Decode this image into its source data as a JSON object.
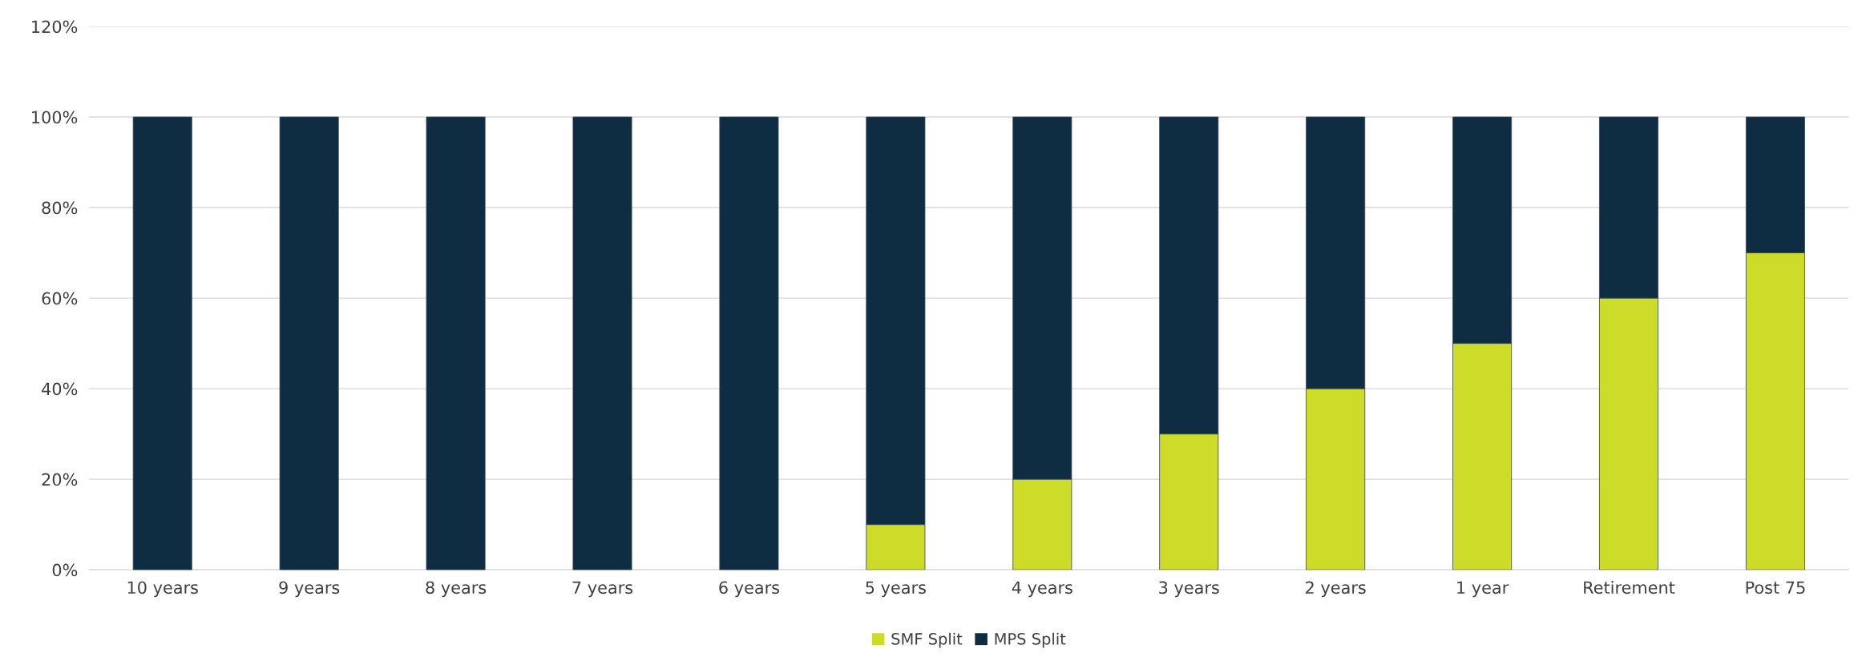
{
  "chart_data": {
    "type": "bar",
    "stacked": true,
    "categories": [
      "10 years",
      "9 years",
      "8 years",
      "7 years",
      "6 years",
      "5 years",
      "4 years",
      "3 years",
      "2 years",
      "1 year",
      "Retirement",
      "Post 75"
    ],
    "series": [
      {
        "name": "SMF Split",
        "color": "#cddc29",
        "values": [
          0,
          0,
          0,
          0,
          0,
          10,
          20,
          30,
          40,
          50,
          60,
          70
        ]
      },
      {
        "name": "MPS Split",
        "color": "#0e2c42",
        "values": [
          100,
          100,
          100,
          100,
          100,
          90,
          80,
          70,
          60,
          50,
          40,
          30
        ]
      }
    ],
    "ylim": [
      0,
      120
    ],
    "yticks": [
      {
        "value": 0,
        "label": "0%"
      },
      {
        "value": 20,
        "label": "20%"
      },
      {
        "value": 40,
        "label": "40%"
      },
      {
        "value": 60,
        "label": "60%"
      },
      {
        "value": 80,
        "label": "80%"
      },
      {
        "value": 100,
        "label": "100%"
      },
      {
        "value": 120,
        "label": "120%"
      }
    ],
    "grid": "y",
    "legend": "bottom"
  }
}
